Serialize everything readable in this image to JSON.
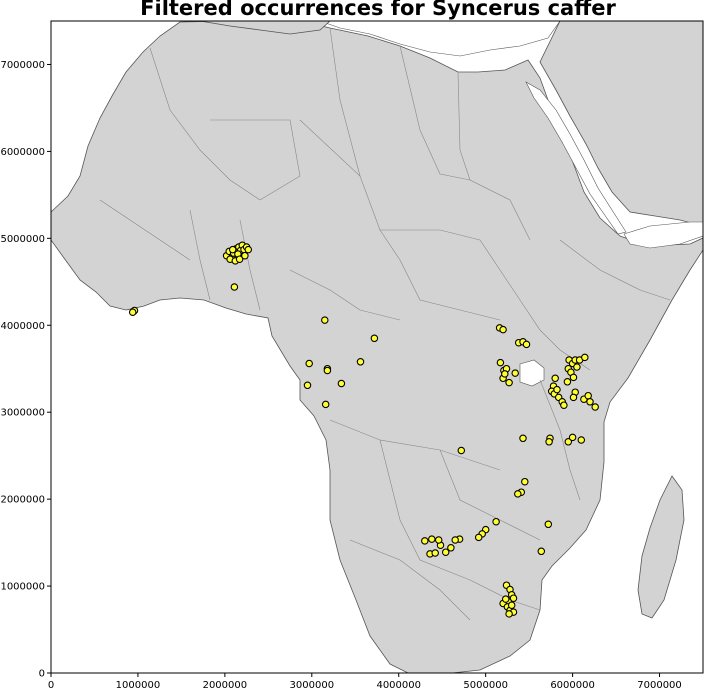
{
  "title": "Filtered occurrences for Syncerus caffer",
  "colors": {
    "sea": "#ffffff",
    "land": "#d3d3d3",
    "border": "#888888",
    "coast": "#555555",
    "marker_fill": "#ffff33",
    "marker_edge": "#000000"
  },
  "chart_data": {
    "type": "scatter",
    "title": "Filtered occurrences for Syncerus caffer",
    "xlabel": "",
    "ylabel": "",
    "xlim": [
      0,
      7500000
    ],
    "ylim": [
      0,
      7500000
    ],
    "x_ticks": [
      0,
      1000000,
      2000000,
      3000000,
      4000000,
      5000000,
      6000000,
      7000000
    ],
    "x_tick_labels": [
      "0",
      "1000000",
      "2000000",
      "3000000",
      "4000000",
      "5000000",
      "6000000",
      "7000000"
    ],
    "y_ticks": [
      0,
      1000000,
      2000000,
      3000000,
      4000000,
      5000000,
      6000000,
      7000000
    ],
    "y_tick_labels": [
      "0",
      "1000000",
      "2000000",
      "3000000",
      "4000000",
      "5000000",
      "6000000",
      "7000000"
    ],
    "grid": false,
    "background": "map of Africa",
    "series": [
      {
        "points": [
          [
            950000,
            4160000
          ],
          [
            960000,
            4170000
          ],
          [
            940000,
            4150000
          ],
          [
            2020000,
            4800000
          ],
          [
            2050000,
            4850000
          ],
          [
            2080000,
            4780000
          ],
          [
            2100000,
            4830000
          ],
          [
            2130000,
            4880000
          ],
          [
            2160000,
            4900000
          ],
          [
            2180000,
            4860000
          ],
          [
            2200000,
            4920000
          ],
          [
            2220000,
            4870000
          ],
          [
            2250000,
            4900000
          ],
          [
            2060000,
            4760000
          ],
          [
            2120000,
            4740000
          ],
          [
            2150000,
            4820000
          ],
          [
            2170000,
            4760000
          ],
          [
            2230000,
            4800000
          ],
          [
            2270000,
            4870000
          ],
          [
            2090000,
            4870000
          ],
          [
            2110000,
            4440000
          ],
          [
            3150000,
            4060000
          ],
          [
            3720000,
            3850000
          ],
          [
            2970000,
            3560000
          ],
          [
            2950000,
            3310000
          ],
          [
            3180000,
            3500000
          ],
          [
            3180000,
            3480000
          ],
          [
            3340000,
            3330000
          ],
          [
            3560000,
            3580000
          ],
          [
            3160000,
            3090000
          ],
          [
            5160000,
            3970000
          ],
          [
            5200000,
            3950000
          ],
          [
            5380000,
            3800000
          ],
          [
            5430000,
            3810000
          ],
          [
            5470000,
            3780000
          ],
          [
            5170000,
            3570000
          ],
          [
            5210000,
            3480000
          ],
          [
            5240000,
            3500000
          ],
          [
            5200000,
            3390000
          ],
          [
            5270000,
            3340000
          ],
          [
            5340000,
            3450000
          ],
          [
            5220000,
            3440000
          ],
          [
            5800000,
            3390000
          ],
          [
            5780000,
            3300000
          ],
          [
            5760000,
            3240000
          ],
          [
            5790000,
            3210000
          ],
          [
            5820000,
            3260000
          ],
          [
            5840000,
            3170000
          ],
          [
            5880000,
            3120000
          ],
          [
            5900000,
            3080000
          ],
          [
            5950000,
            3500000
          ],
          [
            5980000,
            3460000
          ],
          [
            5960000,
            3600000
          ],
          [
            6000000,
            3560000
          ],
          [
            6030000,
            3600000
          ],
          [
            6050000,
            3520000
          ],
          [
            6010000,
            3400000
          ],
          [
            5940000,
            3350000
          ],
          [
            6030000,
            3230000
          ],
          [
            6010000,
            3170000
          ],
          [
            6080000,
            3600000
          ],
          [
            6140000,
            3630000
          ],
          [
            6130000,
            3150000
          ],
          [
            6180000,
            3190000
          ],
          [
            6200000,
            3120000
          ],
          [
            6260000,
            3060000
          ],
          [
            5740000,
            2700000
          ],
          [
            5730000,
            2660000
          ],
          [
            5950000,
            2660000
          ],
          [
            6000000,
            2710000
          ],
          [
            6100000,
            2680000
          ],
          [
            5430000,
            2700000
          ],
          [
            4720000,
            2560000
          ],
          [
            5450000,
            2200000
          ],
          [
            5410000,
            2080000
          ],
          [
            5370000,
            2060000
          ],
          [
            5120000,
            1740000
          ],
          [
            5000000,
            1650000
          ],
          [
            4960000,
            1600000
          ],
          [
            4920000,
            1560000
          ],
          [
            4700000,
            1540000
          ],
          [
            4650000,
            1530000
          ],
          [
            4600000,
            1440000
          ],
          [
            4540000,
            1390000
          ],
          [
            4480000,
            1470000
          ],
          [
            4460000,
            1530000
          ],
          [
            4380000,
            1540000
          ],
          [
            4300000,
            1520000
          ],
          [
            4360000,
            1370000
          ],
          [
            4420000,
            1380000
          ],
          [
            5720000,
            1710000
          ],
          [
            5640000,
            1400000
          ],
          [
            5240000,
            1010000
          ],
          [
            5280000,
            960000
          ],
          [
            5300000,
            900000
          ],
          [
            5320000,
            860000
          ],
          [
            5260000,
            820000
          ],
          [
            5200000,
            800000
          ],
          [
            5250000,
            760000
          ],
          [
            5280000,
            720000
          ],
          [
            5320000,
            700000
          ],
          [
            5230000,
            850000
          ],
          [
            5300000,
            780000
          ],
          [
            5270000,
            680000
          ]
        ]
      }
    ]
  }
}
